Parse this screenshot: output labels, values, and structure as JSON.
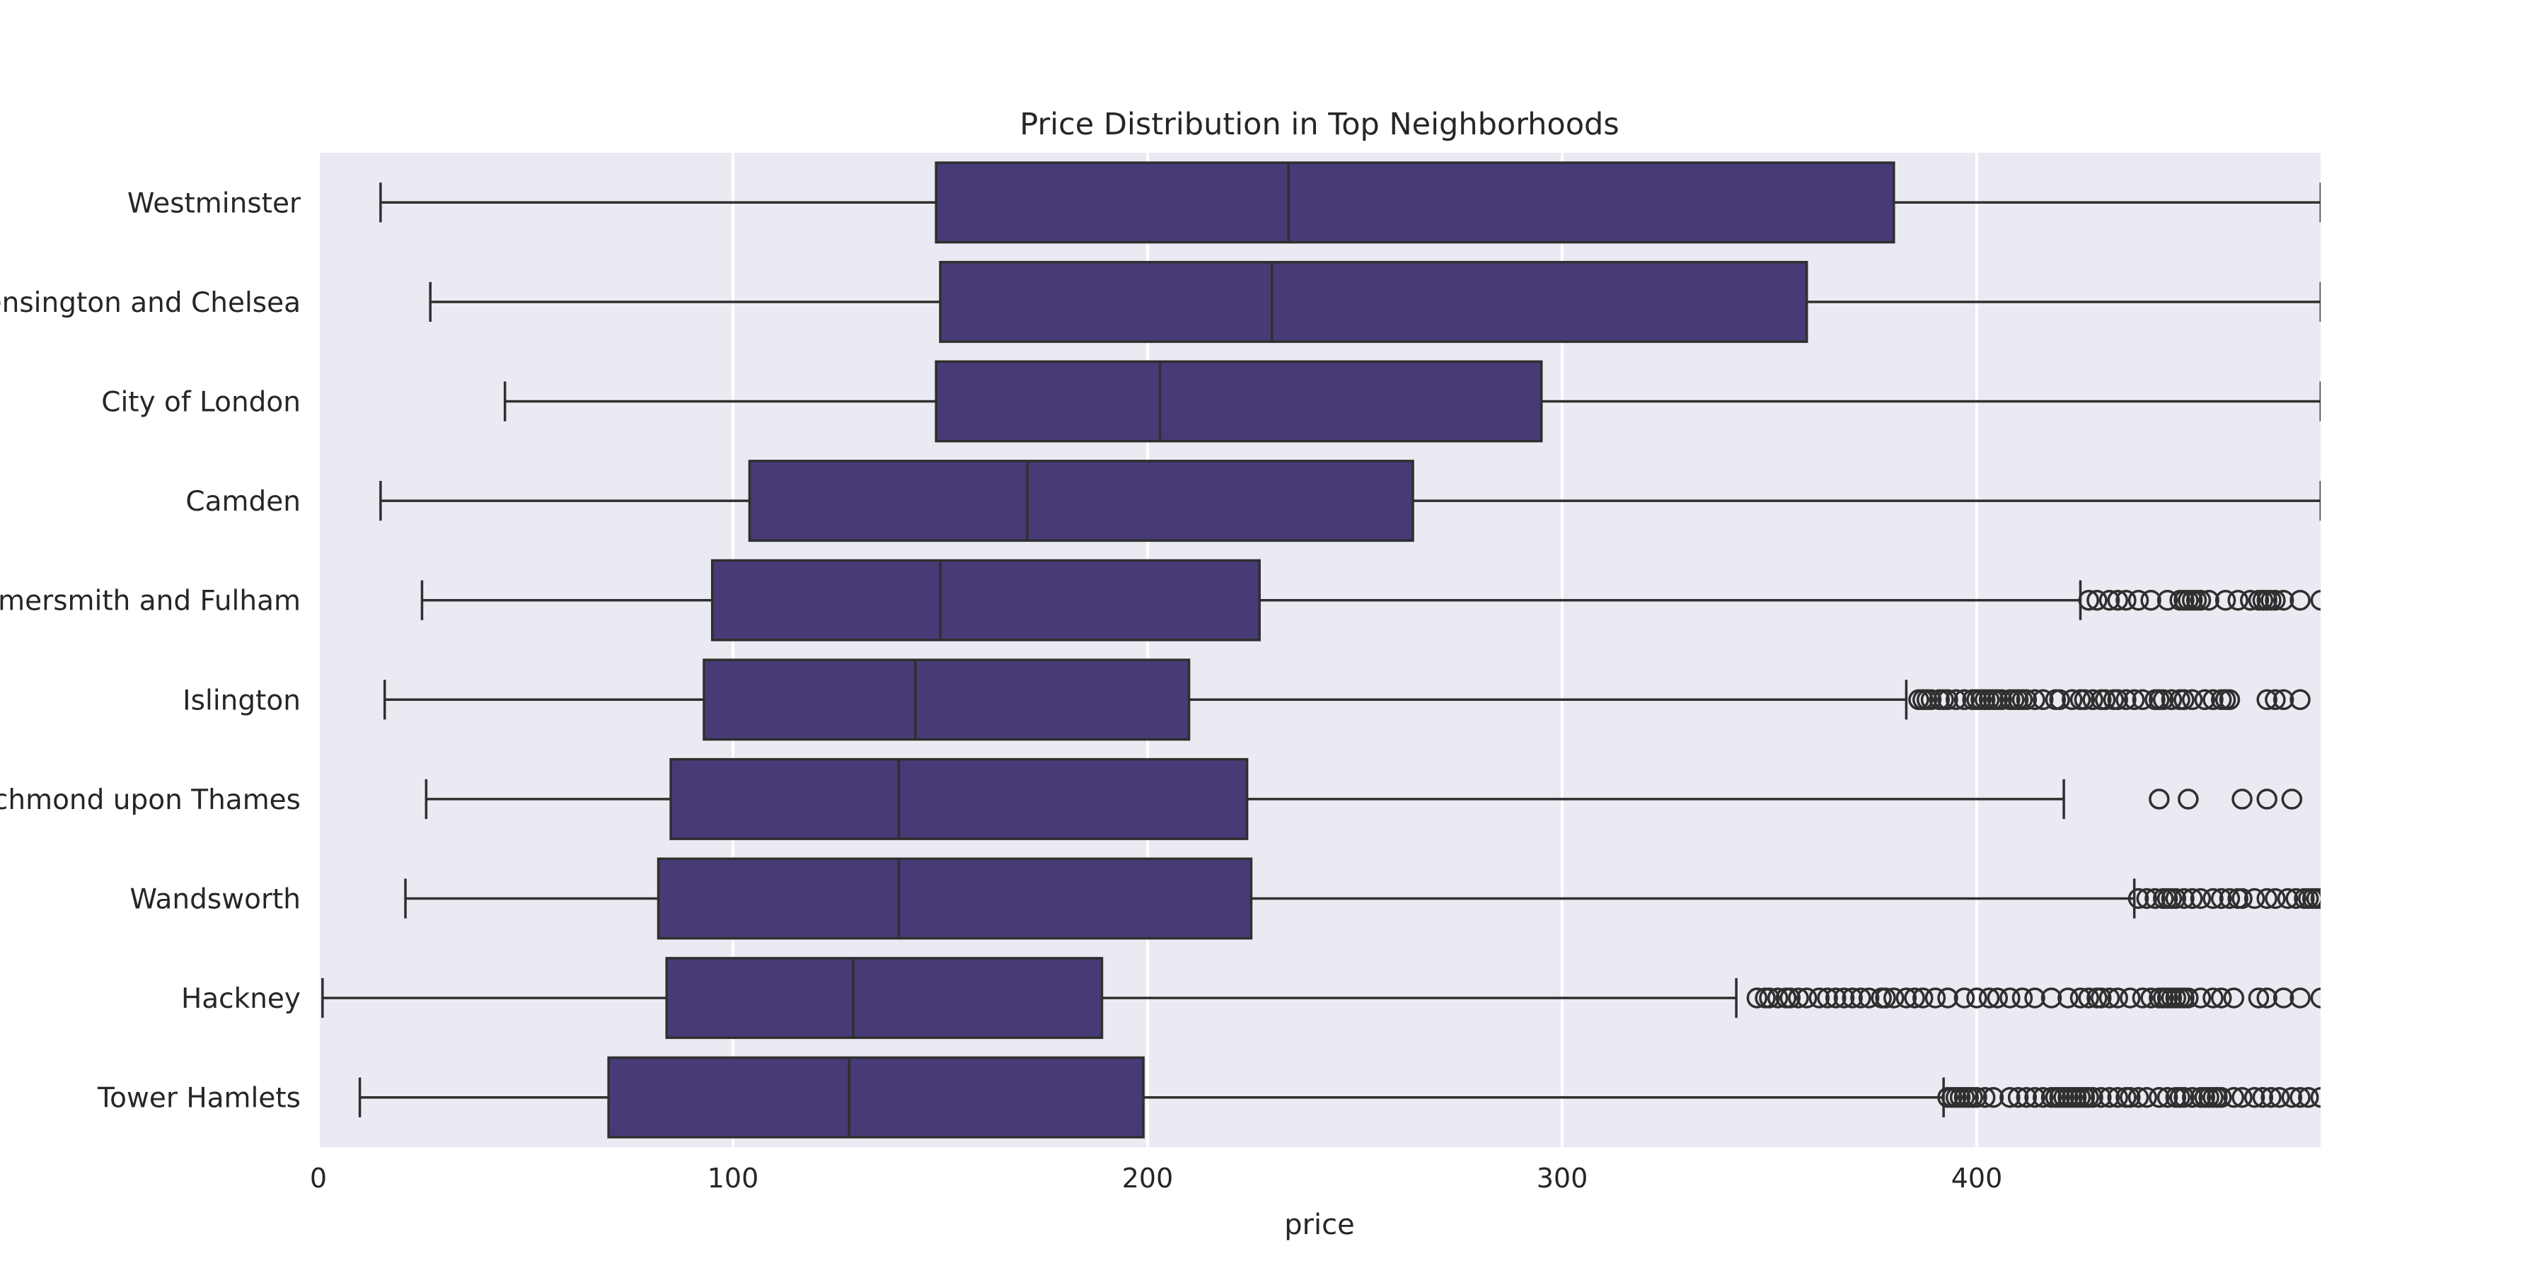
{
  "chart_data": {
    "type": "box",
    "orientation": "horizontal",
    "title": "Price Distribution in Top Neighborhoods",
    "xlabel": "price",
    "ylabel": "",
    "xlim": [
      0,
      483
    ],
    "xticks": [
      0,
      100,
      200,
      300,
      400
    ],
    "grid": true,
    "box_color": "#483a76",
    "edge_color": "#2f2f2f",
    "background_color": "#eaeaf2",
    "grid_color": "#ffffff",
    "categories": [
      "Westminster",
      "Kensington and Chelsea",
      "City of London",
      "Camden",
      "Hammersmith and Fulham",
      "Islington",
      "Richmond upon Thames",
      "Wandsworth",
      "Hackney",
      "Tower Hamlets"
    ],
    "boxes": [
      {
        "whislo": 15,
        "q1": 149,
        "med": 234,
        "q3": 380,
        "whishi": 483,
        "fliers": []
      },
      {
        "whislo": 27,
        "q1": 150,
        "med": 230,
        "q3": 359,
        "whishi": 483,
        "fliers": []
      },
      {
        "whislo": 45,
        "q1": 149,
        "med": 203,
        "q3": 295,
        "whishi": 483,
        "fliers": []
      },
      {
        "whislo": 15,
        "q1": 104,
        "med": 171,
        "q3": 264,
        "whishi": 483,
        "fliers": []
      },
      {
        "whislo": 25,
        "q1": 95,
        "med": 150,
        "q3": 227,
        "whishi": 425,
        "fliers": [
          427,
          429,
          432,
          434,
          436,
          439,
          442,
          446,
          449,
          450,
          451,
          452,
          453,
          454,
          456,
          460,
          463,
          466,
          468,
          469,
          470,
          471,
          472,
          474,
          478,
          483
        ]
      },
      {
        "whislo": 16,
        "q1": 93,
        "med": 144,
        "q3": 210,
        "whishi": 383,
        "fliers": [
          386,
          387,
          388,
          389,
          391,
          392,
          393,
          395,
          397,
          399,
          400,
          401,
          402,
          403,
          404,
          405,
          406,
          408,
          409,
          410,
          411,
          412,
          414,
          416,
          419,
          420,
          423,
          425,
          426,
          428,
          430,
          431,
          433,
          434,
          436,
          438,
          440,
          443,
          444,
          445,
          447,
          449,
          450,
          452,
          455,
          457,
          459,
          460,
          461,
          470,
          472,
          474,
          478
        ]
      },
      {
        "whislo": 26,
        "q1": 85,
        "med": 140,
        "q3": 224,
        "whishi": 421,
        "fliers": [
          444,
          451,
          464,
          470,
          476
        ]
      },
      {
        "whislo": 21,
        "q1": 82,
        "med": 140,
        "q3": 225,
        "whishi": 438,
        "fliers": [
          439,
          441,
          443,
          445,
          446,
          447,
          448,
          450,
          452,
          454,
          457,
          459,
          461,
          463,
          464,
          467,
          470,
          472,
          475,
          477,
          479,
          480,
          481,
          482,
          483
        ]
      },
      {
        "whislo": 1,
        "q1": 84,
        "med": 129,
        "q3": 189,
        "whishi": 342,
        "fliers": [
          347,
          349,
          350,
          352,
          354,
          355,
          357,
          359,
          362,
          364,
          366,
          368,
          370,
          372,
          374,
          377,
          378,
          380,
          383,
          385,
          387,
          390,
          393,
          397,
          400,
          403,
          405,
          408,
          411,
          414,
          418,
          422,
          425,
          427,
          429,
          430,
          432,
          434,
          437,
          440,
          442,
          444,
          445,
          446,
          447,
          448,
          449,
          450,
          451,
          454,
          457,
          459,
          462,
          468,
          470,
          474,
          478,
          483
        ]
      },
      {
        "whislo": 10,
        "q1": 70,
        "med": 128,
        "q3": 199,
        "whishi": 392,
        "fliers": [
          393,
          394,
          395,
          396,
          397,
          398,
          399,
          400,
          402,
          404,
          408,
          410,
          412,
          414,
          416,
          418,
          419,
          420,
          421,
          422,
          423,
          424,
          425,
          426,
          427,
          428,
          430,
          432,
          434,
          436,
          437,
          439,
          441,
          444,
          446,
          448,
          449,
          450,
          452,
          454,
          455,
          456,
          457,
          458,
          459,
          462,
          464,
          467,
          469,
          471,
          473,
          476,
          478,
          480,
          483
        ]
      }
    ]
  }
}
